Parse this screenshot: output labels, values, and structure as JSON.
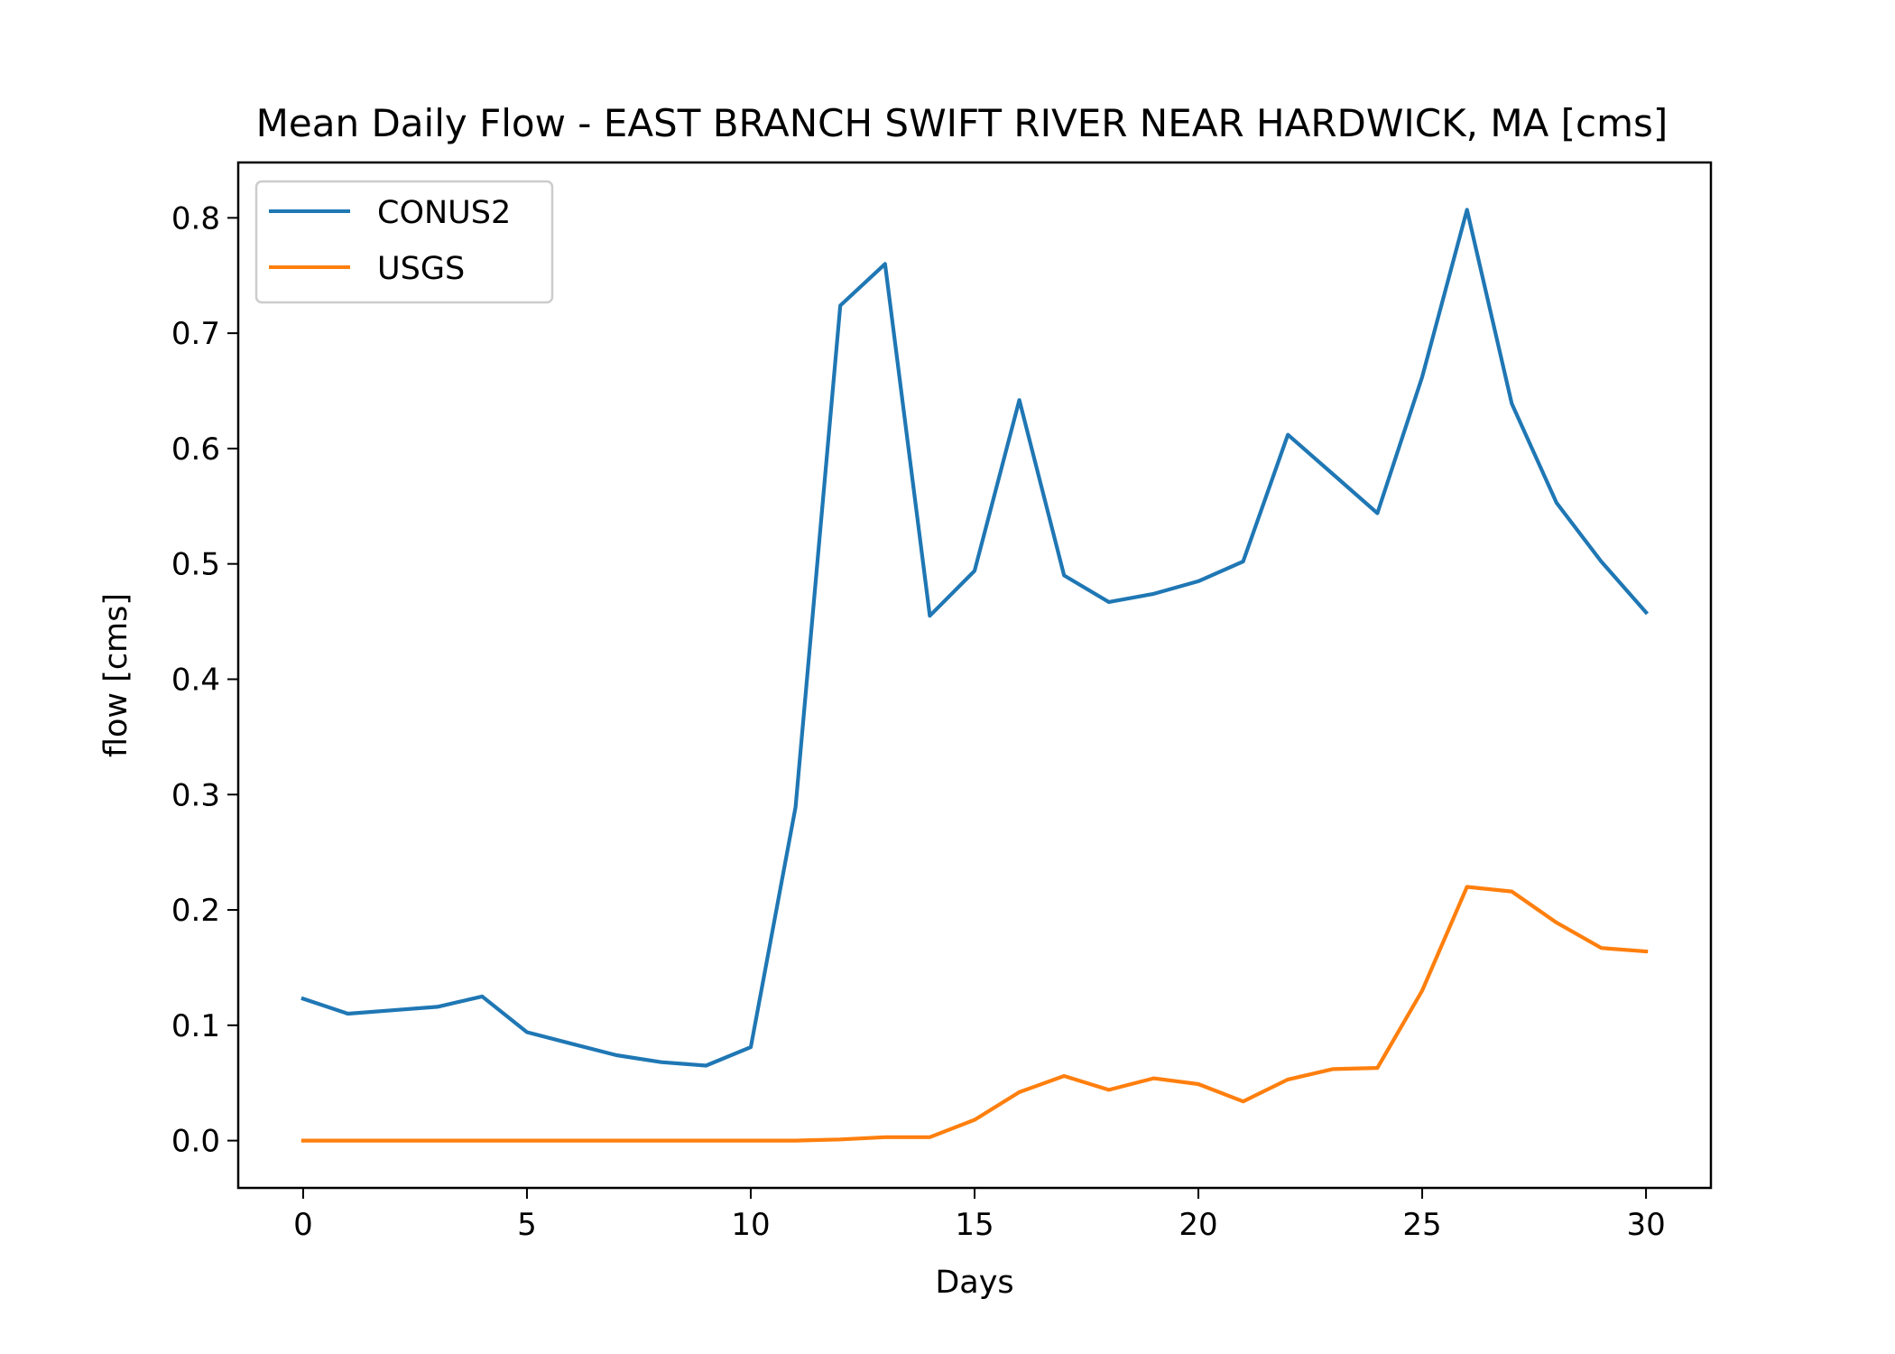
{
  "chart_data": {
    "type": "line",
    "title": "Mean Daily Flow - EAST BRANCH SWIFT RIVER NEAR HARDWICK, MA [cms]",
    "xlabel": "Days",
    "ylabel": "flow [cms]",
    "xlim": [
      -1.45,
      31.45
    ],
    "ylim": [
      -0.041,
      0.848
    ],
    "xticks": [
      0,
      5,
      10,
      15,
      20,
      25,
      30
    ],
    "xtick_labels": [
      "0",
      "5",
      "10",
      "15",
      "20",
      "25",
      "30"
    ],
    "yticks": [
      0.0,
      0.1,
      0.2,
      0.3,
      0.4,
      0.5,
      0.6,
      0.7,
      0.8
    ],
    "ytick_labels": [
      "0.0",
      "0.1",
      "0.2",
      "0.3",
      "0.4",
      "0.5",
      "0.6",
      "0.7",
      "0.8"
    ],
    "grid": false,
    "legend_position": "top-left",
    "x": [
      0,
      1,
      2,
      3,
      4,
      5,
      6,
      7,
      8,
      9,
      10,
      11,
      12,
      13,
      14,
      15,
      16,
      17,
      18,
      19,
      20,
      21,
      22,
      23,
      24,
      25,
      26,
      27,
      28,
      29,
      30
    ],
    "series": [
      {
        "name": "CONUS2",
        "color": "#1f77b4",
        "values": [
          0.123,
          0.11,
          0.113,
          0.116,
          0.125,
          0.094,
          0.084,
          0.074,
          0.068,
          0.065,
          0.081,
          0.289,
          0.724,
          0.76,
          0.455,
          0.494,
          0.642,
          0.49,
          0.467,
          0.474,
          0.485,
          0.502,
          0.612,
          0.578,
          0.544,
          0.662,
          0.807,
          0.639,
          0.553,
          0.502,
          0.458
        ]
      },
      {
        "name": "USGS",
        "color": "#ff7f0e",
        "values": [
          0.0,
          0.0,
          0.0,
          0.0,
          0.0,
          0.0,
          0.0,
          0.0,
          0.0,
          0.0,
          0.0,
          0.0,
          0.001,
          0.003,
          0.003,
          0.018,
          0.042,
          0.056,
          0.044,
          0.054,
          0.049,
          0.034,
          0.053,
          0.062,
          0.063,
          0.13,
          0.22,
          0.216,
          0.189,
          0.167,
          0.164
        ]
      }
    ]
  }
}
